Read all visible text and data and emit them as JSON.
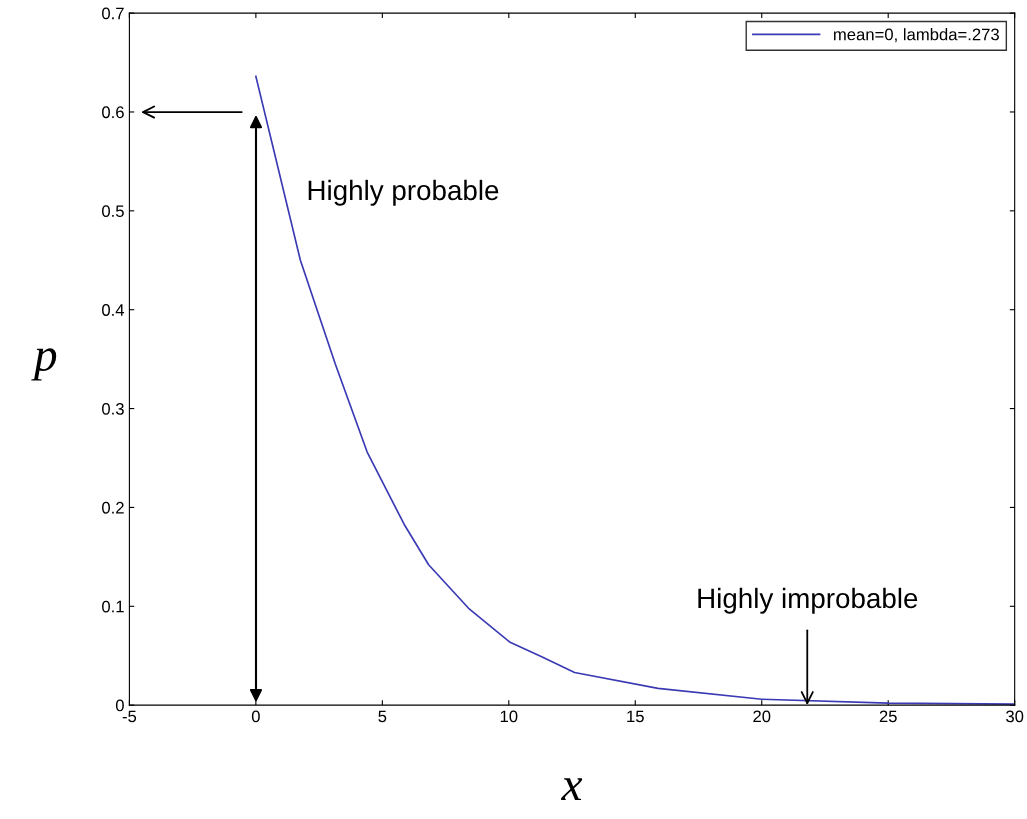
{
  "chart_data": {
    "type": "line",
    "xlabel": "x",
    "ylabel": "p",
    "x": [
      0,
      0.72,
      1.76,
      3.14,
      4.4,
      5.86,
      6.83,
      8.41,
      10.03,
      11.3,
      12.6,
      15.9,
      20,
      25,
      30
    ],
    "series": [
      {
        "name": "mean=0, lambda=.273",
        "color": "#3a3ab4",
        "values": [
          0.636,
          0.56,
          0.45,
          0.345,
          0.256,
          0.183,
          0.142,
          0.098,
          0.064,
          0.049,
          0.033,
          0.017,
          0.006,
          0.002,
          0.001
        ]
      }
    ],
    "xlim": [
      -5,
      30
    ],
    "xticks": [
      -5,
      0,
      5,
      10,
      15,
      20,
      25,
      30
    ],
    "ylim": [
      0,
      0.7
    ],
    "yticks": [
      0,
      0.1,
      0.2,
      0.3,
      0.4,
      0.5,
      0.6,
      0.7
    ],
    "annotations": [
      "Highly probable",
      {
        "text": "Highly improbable",
        "x": 21.8,
        "y": 0
      }
    ],
    "legend": "top right",
    "grid": false
  }
}
